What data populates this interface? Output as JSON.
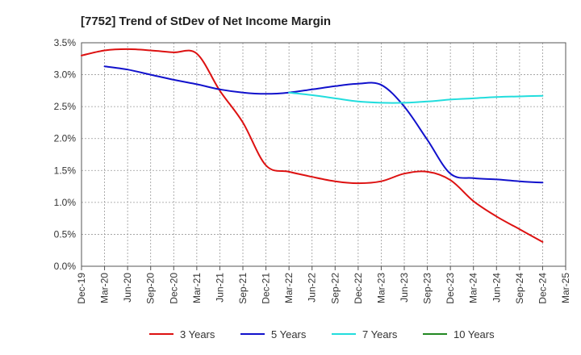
{
  "chart_data": {
    "type": "line",
    "title": "[7752]  Trend of StDev of Net Income Margin",
    "xlabel": "",
    "ylabel": "",
    "categories": [
      "Dec-19",
      "Mar-20",
      "Jun-20",
      "Sep-20",
      "Dec-20",
      "Mar-21",
      "Jun-21",
      "Sep-21",
      "Dec-21",
      "Mar-22",
      "Jun-22",
      "Sep-22",
      "Dec-22",
      "Mar-23",
      "Jun-23",
      "Sep-23",
      "Dec-23",
      "Mar-24",
      "Jun-24",
      "Sep-24",
      "Dec-24",
      "Mar-25"
    ],
    "y_ticks": [
      "0.0%",
      "0.5%",
      "1.0%",
      "1.5%",
      "2.0%",
      "2.5%",
      "3.0%",
      "3.5%"
    ],
    "ylim": [
      0,
      3.5
    ],
    "y_unit": "%",
    "grid": true,
    "legend_position": "bottom",
    "series": [
      {
        "name": "3 Years",
        "color": "#dd1111",
        "values": [
          3.3,
          3.38,
          3.4,
          3.38,
          3.35,
          3.33,
          2.75,
          2.25,
          1.58,
          1.48,
          1.4,
          1.33,
          1.3,
          1.33,
          1.45,
          1.48,
          1.35,
          1.02,
          0.78,
          0.58,
          0.38,
          null
        ]
      },
      {
        "name": "5 Years",
        "color": "#1111cc",
        "values": [
          null,
          3.13,
          3.08,
          3.0,
          2.92,
          2.85,
          2.77,
          2.72,
          2.7,
          2.72,
          2.77,
          2.82,
          2.86,
          2.84,
          2.5,
          1.98,
          1.45,
          1.38,
          1.36,
          1.33,
          1.31,
          null
        ]
      },
      {
        "name": "7 Years",
        "color": "#22dddd",
        "values": [
          null,
          null,
          null,
          null,
          null,
          null,
          null,
          null,
          null,
          2.72,
          2.68,
          2.63,
          2.58,
          2.56,
          2.56,
          2.58,
          2.61,
          2.63,
          2.65,
          2.66,
          2.67,
          null
        ]
      },
      {
        "name": "10 Years",
        "color": "#228822",
        "values": [
          null,
          null,
          null,
          null,
          null,
          null,
          null,
          null,
          null,
          null,
          null,
          null,
          null,
          null,
          null,
          null,
          null,
          null,
          null,
          null,
          null,
          null
        ]
      }
    ]
  }
}
